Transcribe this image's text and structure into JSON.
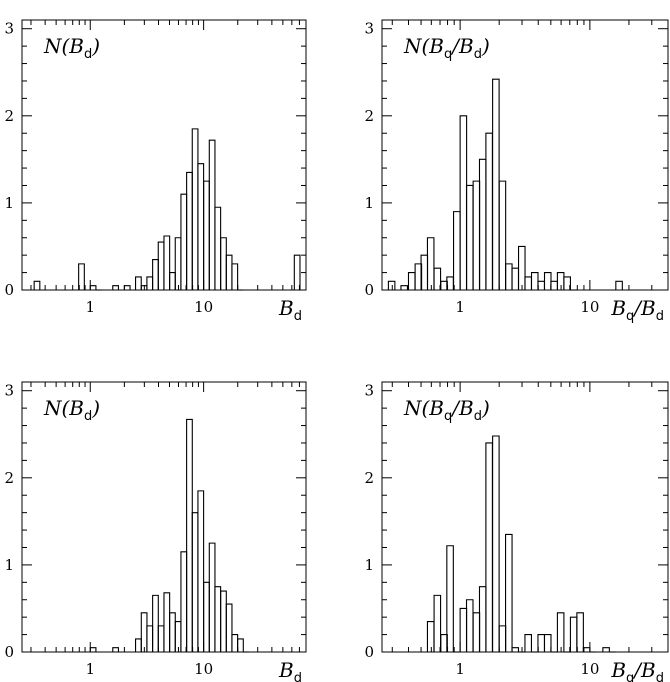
{
  "chart_data": [
    {
      "type": "histogram",
      "xscale": "log",
      "xlim": [
        0.25,
        80
      ],
      "ylim": [
        0,
        3.1
      ],
      "x_ticks": [
        "1",
        "10"
      ],
      "y_ticks": [
        "0",
        "1",
        "2",
        "3"
      ],
      "label_main": "N(B",
      "label_sub": "d",
      "label_close": ")",
      "xlabel_main": "B",
      "xlabel_sub": "d",
      "xlabel_tail": "",
      "xlabel_tail_sub": "",
      "bins": [
        [
          0.32,
          0.1
        ],
        [
          0.79,
          0.3
        ],
        [
          1.0,
          0.05
        ],
        [
          1.12,
          0.0
        ],
        [
          1.58,
          0.05
        ],
        [
          2.0,
          0.05
        ],
        [
          2.51,
          0.15
        ],
        [
          2.82,
          0.05
        ],
        [
          3.16,
          0.15
        ],
        [
          3.55,
          0.35
        ],
        [
          3.98,
          0.55
        ],
        [
          4.47,
          0.62
        ],
        [
          5.01,
          0.2
        ],
        [
          5.62,
          0.6
        ],
        [
          6.31,
          1.1
        ],
        [
          7.08,
          1.35
        ],
        [
          7.94,
          1.85
        ],
        [
          8.91,
          1.45
        ],
        [
          10.0,
          1.25
        ],
        [
          11.22,
          1.72
        ],
        [
          12.59,
          0.95
        ],
        [
          14.13,
          0.6
        ],
        [
          15.85,
          0.4
        ],
        [
          17.78,
          0.3
        ],
        [
          19.95,
          0.0
        ],
        [
          63.1,
          0.4
        ]
      ]
    },
    {
      "type": "histogram",
      "xscale": "log",
      "xlim": [
        0.25,
        40
      ],
      "ylim": [
        0,
        3.1
      ],
      "x_ticks": [
        "1",
        "10"
      ],
      "y_ticks": [
        "0",
        "1",
        "2",
        "3"
      ],
      "label_main": "N(B",
      "label_sub": "q",
      "label_close": "/B",
      "label_sub2": "d",
      "label_close2": ")",
      "xlabel_main": "B",
      "xlabel_sub": "q",
      "xlabel_tail": "/B",
      "xlabel_tail_sub": "d",
      "bins": [
        [
          0.28,
          0.1
        ],
        [
          0.35,
          0.05
        ],
        [
          0.4,
          0.2
        ],
        [
          0.45,
          0.3
        ],
        [
          0.5,
          0.4
        ],
        [
          0.56,
          0.6
        ],
        [
          0.63,
          0.25
        ],
        [
          0.71,
          0.1
        ],
        [
          0.79,
          0.15
        ],
        [
          0.89,
          0.9
        ],
        [
          1.0,
          2.0
        ],
        [
          1.12,
          1.2
        ],
        [
          1.26,
          1.25
        ],
        [
          1.41,
          1.5
        ],
        [
          1.58,
          1.8
        ],
        [
          1.78,
          2.42
        ],
        [
          2.0,
          1.25
        ],
        [
          2.24,
          0.3
        ],
        [
          2.51,
          0.25
        ],
        [
          2.82,
          0.5
        ],
        [
          3.16,
          0.15
        ],
        [
          3.55,
          0.2
        ],
        [
          3.98,
          0.1
        ],
        [
          4.47,
          0.2
        ],
        [
          5.01,
          0.1
        ],
        [
          5.62,
          0.2
        ],
        [
          6.31,
          0.15
        ],
        [
          7.08,
          0.0
        ],
        [
          15.85,
          0.1
        ]
      ]
    },
    {
      "type": "histogram",
      "xscale": "log",
      "xlim": [
        0.25,
        80
      ],
      "ylim": [
        0,
        3.1
      ],
      "x_ticks": [
        "1",
        "10"
      ],
      "y_ticks": [
        "0",
        "1",
        "2",
        "3"
      ],
      "label_main": "N(B",
      "label_sub": "d",
      "label_close": ")",
      "xlabel_main": "B",
      "xlabel_sub": "d",
      "xlabel_tail": "",
      "xlabel_tail_sub": "",
      "bins": [
        [
          1.0,
          0.05
        ],
        [
          1.58,
          0.05
        ],
        [
          2.51,
          0.15
        ],
        [
          2.82,
          0.45
        ],
        [
          3.16,
          0.3
        ],
        [
          3.55,
          0.65
        ],
        [
          3.98,
          0.3
        ],
        [
          4.47,
          0.68
        ],
        [
          5.01,
          0.45
        ],
        [
          5.62,
          0.35
        ],
        [
          6.31,
          1.15
        ],
        [
          7.08,
          2.67
        ],
        [
          7.94,
          1.6
        ],
        [
          8.91,
          1.85
        ],
        [
          10.0,
          0.8
        ],
        [
          11.22,
          1.25
        ],
        [
          12.59,
          0.75
        ],
        [
          14.13,
          0.7
        ],
        [
          15.85,
          0.55
        ],
        [
          17.78,
          0.2
        ],
        [
          19.95,
          0.15
        ],
        [
          22.39,
          0.0
        ]
      ]
    },
    {
      "type": "histogram",
      "xscale": "log",
      "xlim": [
        0.25,
        40
      ],
      "ylim": [
        0,
        3.1
      ],
      "x_ticks": [
        "1",
        "10"
      ],
      "y_ticks": [
        "0",
        "1",
        "2",
        "3"
      ],
      "label_main": "N(B",
      "label_sub": "q",
      "label_close": "/B",
      "label_sub2": "d",
      "label_close2": ")",
      "xlabel_main": "B",
      "xlabel_sub": "q",
      "xlabel_tail": "/B",
      "xlabel_tail_sub": "d",
      "bins": [
        [
          0.56,
          0.35
        ],
        [
          0.63,
          0.65
        ],
        [
          0.71,
          0.2
        ],
        [
          0.79,
          1.22
        ],
        [
          0.89,
          0.0
        ],
        [
          1.0,
          0.5
        ],
        [
          1.12,
          0.6
        ],
        [
          1.26,
          0.45
        ],
        [
          1.41,
          0.75
        ],
        [
          1.58,
          2.4
        ],
        [
          1.78,
          2.48
        ],
        [
          2.0,
          0.3
        ],
        [
          2.24,
          1.35
        ],
        [
          2.51,
          0.05
        ],
        [
          2.82,
          0.0
        ],
        [
          3.16,
          0.2
        ],
        [
          3.55,
          0.0
        ],
        [
          3.98,
          0.2
        ],
        [
          4.47,
          0.2
        ],
        [
          5.01,
          0.0
        ],
        [
          5.62,
          0.45
        ],
        [
          6.31,
          0.0
        ],
        [
          7.08,
          0.4
        ],
        [
          7.94,
          0.45
        ],
        [
          8.91,
          0.05
        ],
        [
          10.0,
          0.0
        ],
        [
          12.59,
          0.05
        ],
        [
          14.13,
          0.0
        ]
      ]
    }
  ]
}
